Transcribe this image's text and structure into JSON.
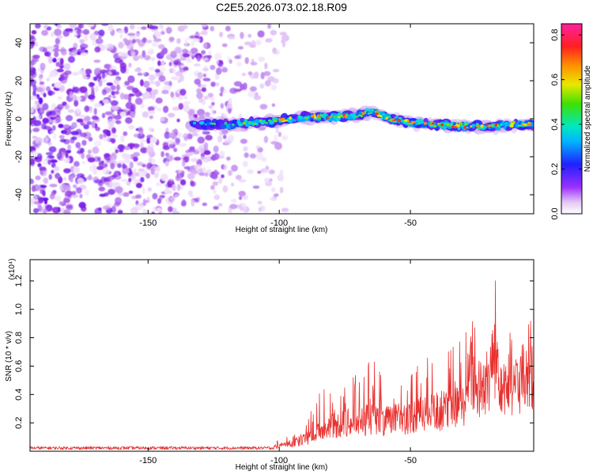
{
  "title": "C2E5.2026.073.02.18.R09",
  "colors": {
    "snr_line": "#e8302e",
    "noise": "#8a2be2",
    "background": "#ffffff"
  },
  "chart_data": [
    {
      "type": "heatmap",
      "xlabel": "Height of straight line (km)",
      "ylabel": "Frequency (Hz)",
      "xlim": [
        -195,
        -3
      ],
      "ylim": [
        -50,
        50
      ],
      "x_ticks": [
        -150,
        -100,
        -50
      ],
      "y_ticks": [
        -40,
        -20,
        0,
        20,
        40
      ],
      "x_tick_labels": [
        "-150",
        "-100",
        "-50"
      ],
      "y_tick_labels": [
        "-40",
        "-20",
        "0",
        "20",
        "40"
      ],
      "colorbar": {
        "label": "Normalized spectral amplitude",
        "range": [
          0,
          0.85
        ],
        "ticks": [
          0.0,
          0.2,
          0.4,
          0.6,
          0.8
        ],
        "tick_labels": [
          "0.0",
          "0.2",
          "0.4",
          "0.6",
          "0.8"
        ],
        "colormap": "rainbow (white-violet-blue-cyan-green-yellow-red-magenta)"
      },
      "noise_region_end_x": -100,
      "signal_start_x": -133,
      "signal_track": {
        "x": [
          -133,
          -120,
          -110,
          -100,
          -90,
          -80,
          -70,
          -65,
          -60,
          -50,
          -40,
          -30,
          -20,
          -10,
          -3
        ],
        "frequency": [
          -3,
          -3,
          -2,
          -1,
          1,
          1,
          2,
          4,
          1,
          -2,
          -3,
          -4,
          -4,
          -3,
          -3
        ]
      }
    },
    {
      "type": "line",
      "xlabel": "Height of straight line (km)",
      "ylabel": "SNR (10 * v/v)",
      "y_multiplier": "(x10⁴)",
      "xlim": [
        -195,
        -3
      ],
      "ylim": [
        0,
        1.35
      ],
      "x_ticks": [
        -150,
        -100,
        -50
      ],
      "y_ticks": [
        0.2,
        0.4,
        0.6,
        0.8,
        1.0,
        1.2
      ],
      "x_tick_labels": [
        "-150",
        "-100",
        "-50"
      ],
      "y_tick_labels": [
        "0.2",
        "0.4",
        "0.6",
        "0.8",
        "1.0",
        "1.2"
      ],
      "series": [
        {
          "x": [
            -195,
            -180,
            -160,
            -140,
            -120,
            -105,
            -100,
            -95,
            -90,
            -85,
            -80,
            -75,
            -70,
            -65,
            -60,
            -55,
            -50,
            -45,
            -40,
            -35,
            -30,
            -27,
            -25,
            -20,
            -18,
            -15,
            -10,
            -5,
            -3
          ],
          "y": [
            0.02,
            0.02,
            0.02,
            0.02,
            0.02,
            0.03,
            0.05,
            0.08,
            0.12,
            0.2,
            0.25,
            0.28,
            0.3,
            0.32,
            0.3,
            0.32,
            0.35,
            0.38,
            0.4,
            0.42,
            0.45,
            0.8,
            0.6,
            0.7,
            1.05,
            0.7,
            0.65,
            0.7,
            0.8
          ],
          "peak_y": [
            0.02,
            0.02,
            0.02,
            0.02,
            0.03,
            0.05,
            0.08,
            0.12,
            0.2,
            0.42,
            0.46,
            0.52,
            0.64,
            0.66,
            0.55,
            0.62,
            0.58,
            0.68,
            0.7,
            0.73,
            1.1,
            1.18,
            0.92,
            0.9,
            1.3,
            0.98,
            0.9,
            0.9,
            0.95
          ]
        }
      ]
    }
  ]
}
